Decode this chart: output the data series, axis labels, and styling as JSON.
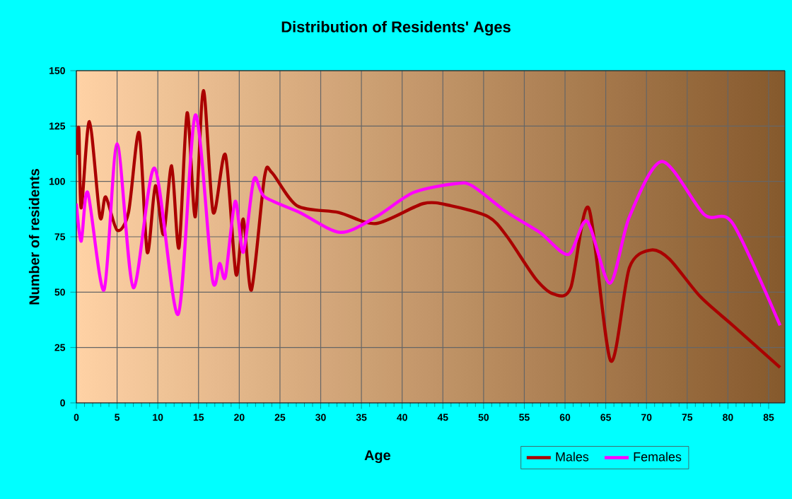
{
  "chart_data": {
    "type": "line",
    "title": "Distribution of Residents' Ages",
    "xlabel": "Age",
    "ylabel": "Number of residents",
    "xlim": [
      0,
      87
    ],
    "xticks": [
      0,
      5,
      10,
      15,
      20,
      25,
      30,
      35,
      40,
      45,
      50,
      55,
      60,
      65,
      70,
      75,
      80,
      85
    ],
    "ylim": [
      0,
      150
    ],
    "yticks": [
      0,
      25,
      50,
      75,
      100,
      125,
      150
    ],
    "grid": true,
    "legend": "bottom right",
    "marker": "none",
    "line_style": "solid",
    "series": [
      {
        "name": "Males",
        "color": "#aa0000",
        "x": [
          0,
          0.3,
          0.6,
          1.6,
          2.9,
          3.6,
          5,
          6.4,
          7.7,
          8.7,
          9.7,
          10.7,
          11.7,
          12.6,
          13.6,
          14.6,
          15.6,
          16.8,
          18.3,
          19.6,
          20.5,
          21.5,
          23.1,
          24,
          27.1,
          32.2,
          36.8,
          42.6,
          46,
          50.6,
          52.9,
          56.4,
          58.7,
          60.7,
          62.9,
          65.6,
          67.9,
          70.5,
          72.8,
          76.6,
          80.6,
          86.4
        ],
        "values": [
          112,
          124,
          88,
          127,
          84,
          93,
          78,
          86,
          122,
          68,
          98,
          76,
          107,
          70,
          131,
          84,
          141,
          86,
          112,
          58,
          83,
          51,
          102,
          104,
          89,
          86,
          81,
          90,
          89,
          84,
          75,
          56,
          49,
          52,
          88,
          19,
          61,
          69,
          65,
          48,
          35,
          16
        ]
      },
      {
        "name": "Females",
        "color": "#ff00ff",
        "x": [
          0,
          0.6,
          1.4,
          3.4,
          5,
          7,
          9.6,
          12.5,
          14.6,
          16.7,
          17.6,
          18.3,
          19.5,
          20.5,
          21.8,
          23.1,
          27.4,
          32.4,
          36.8,
          41.4,
          46.6,
          48.6,
          52.9,
          56.9,
          60.4,
          62.7,
          65.5,
          67.9,
          71.9,
          77.1,
          80.6,
          86.4
        ],
        "values": [
          90,
          73,
          95,
          51,
          117,
          52,
          106,
          40,
          130,
          56,
          63,
          57,
          91,
          68,
          101,
          93,
          86,
          77,
          84,
          95,
          99,
          98,
          86,
          77,
          67,
          82,
          54,
          84,
          109,
          85,
          81,
          35
        ]
      }
    ]
  }
}
